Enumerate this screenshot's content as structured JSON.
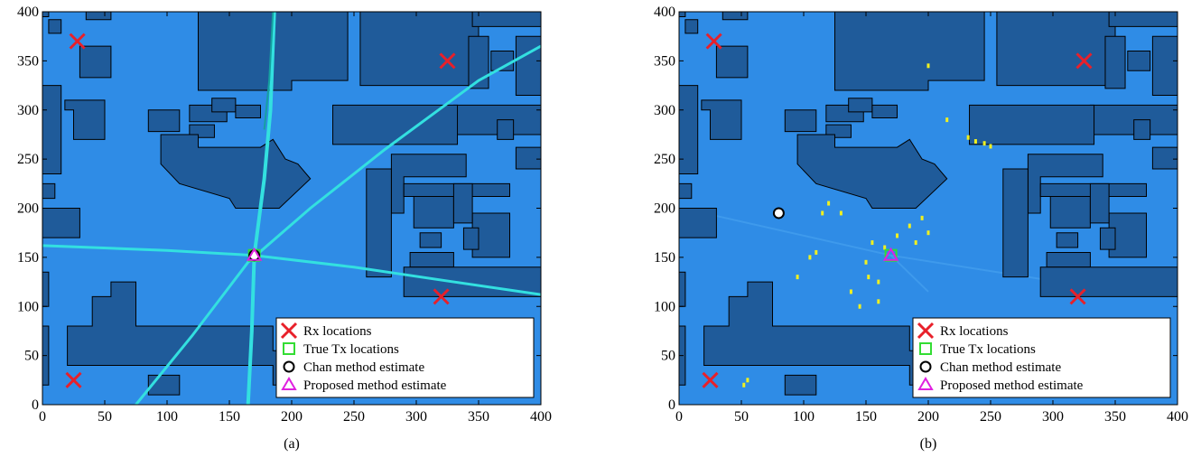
{
  "chart_data": [
    {
      "type": "scatter",
      "panel": "(a)",
      "xlim": [
        0,
        400
      ],
      "ylim": [
        0,
        400
      ],
      "xticks": [
        0,
        50,
        100,
        150,
        200,
        250,
        300,
        350,
        400
      ],
      "yticks": [
        0,
        50,
        100,
        150,
        200,
        250,
        300,
        350,
        400
      ],
      "background_color": "#2f8ce6",
      "building_color": "#1f5b9a",
      "series": [
        {
          "name": "Rx locations",
          "marker": "x",
          "color": "#e8202a",
          "points": [
            [
              28,
              370
            ],
            [
              325,
              350
            ],
            [
              320,
              110
            ],
            [
              25,
              25
            ]
          ]
        },
        {
          "name": "True Tx locations",
          "marker": "square",
          "color": "#33dd33",
          "points": [
            [
              170,
              152
            ]
          ]
        },
        {
          "name": "Chan method estimate",
          "marker": "circle",
          "color": "#000000",
          "points": [
            [
              170,
              152
            ]
          ]
        },
        {
          "name": "Proposed method estimate",
          "marker": "triangle",
          "color": "#e020e0",
          "points": [
            [
              170,
              152
            ]
          ]
        }
      ],
      "legend_position": "bottom-right"
    },
    {
      "type": "scatter",
      "panel": "(b)",
      "xlim": [
        0,
        400
      ],
      "ylim": [
        0,
        400
      ],
      "xticks": [
        0,
        50,
        100,
        150,
        200,
        250,
        300,
        350,
        400
      ],
      "yticks": [
        0,
        50,
        100,
        150,
        200,
        250,
        300,
        350,
        400
      ],
      "background_color": "#2f8ce6",
      "building_color": "#1f5b9a",
      "series": [
        {
          "name": "Rx locations",
          "marker": "x",
          "color": "#e8202a",
          "points": [
            [
              28,
              370
            ],
            [
              325,
              350
            ],
            [
              320,
              110
            ],
            [
              25,
              25
            ]
          ]
        },
        {
          "name": "True Tx locations",
          "marker": "square",
          "color": "#33dd33",
          "points": [
            [
              170,
              152
            ]
          ]
        },
        {
          "name": "Chan method estimate",
          "marker": "circle",
          "color": "#000000",
          "points": [
            [
              80,
              195
            ]
          ]
        },
        {
          "name": "Proposed method estimate",
          "marker": "triangle",
          "color": "#e020e0",
          "points": [
            [
              170,
              152
            ]
          ]
        }
      ],
      "legend_position": "bottom-right"
    }
  ]
}
